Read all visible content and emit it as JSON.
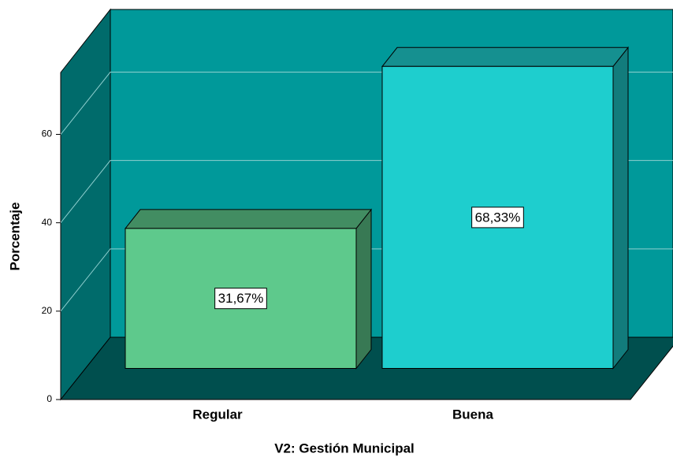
{
  "chart_data": {
    "type": "bar3d",
    "categories": [
      "Regular",
      "Buena"
    ],
    "values": [
      31.67,
      68.33
    ],
    "value_labels": [
      "31,67%",
      "68,33%"
    ],
    "colors": [
      "#5ec98c",
      "#1ecece"
    ],
    "ylim": [
      0,
      74
    ],
    "yticks": [
      0,
      20,
      40,
      60
    ],
    "grid": true,
    "ylabel": "Porcentaje",
    "xlabel": "V2: Gestión Municipal"
  }
}
